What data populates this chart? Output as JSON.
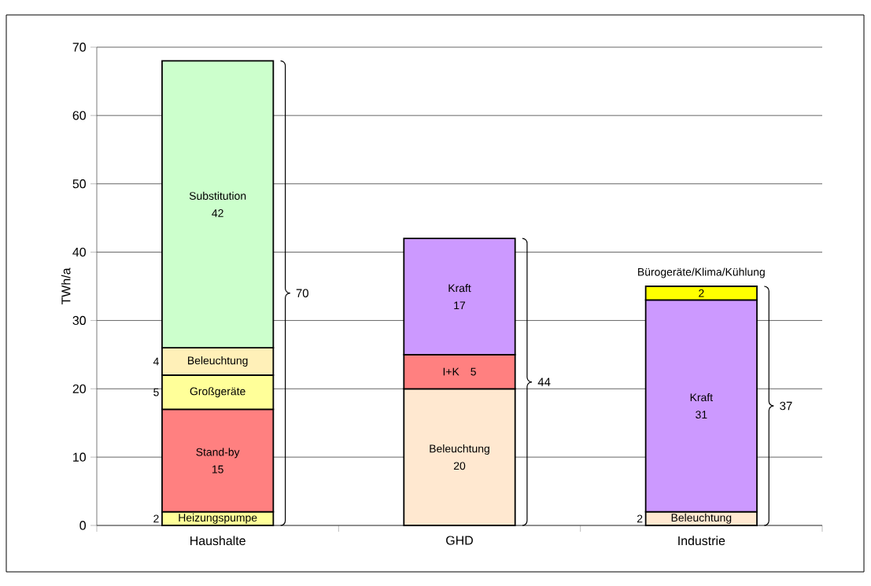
{
  "chart_data": {
    "type": "bar",
    "stacked": true,
    "ylabel": "TWh/a",
    "categories": [
      "Haushalte",
      "GHD",
      "Industrie"
    ],
    "series": [
      {
        "name": "Heizungspumpe",
        "color": "#ffff99",
        "values": [
          2,
          null,
          null
        ]
      },
      {
        "name": "Stand-by",
        "color": "#ff8080",
        "values": [
          15,
          null,
          null
        ]
      },
      {
        "name": "Großgeräte",
        "color": "#ffff99",
        "values": [
          5,
          null,
          null
        ]
      },
      {
        "name": "Beleuchtung",
        "color": "#fff0b8",
        "values": [
          4,
          null,
          null
        ]
      },
      {
        "name": "Substitution",
        "color": "#ccffcc",
        "values": [
          42,
          null,
          null
        ]
      },
      {
        "name": "Beleuchtung",
        "color": "#ffe8d0",
        "values": [
          null,
          20,
          2
        ]
      },
      {
        "name": "I+K",
        "color": "#ff8080",
        "values": [
          null,
          5,
          null
        ]
      },
      {
        "name": "Kraft",
        "color": "#cc99ff",
        "values": [
          null,
          17,
          31
        ]
      },
      {
        "name": "Bürogeräte/Klima/Kühlung",
        "color": "#ffff00",
        "values": [
          null,
          null,
          2
        ]
      }
    ],
    "totals": [
      "70",
      "44",
      "37"
    ],
    "data_labels": true,
    "ylim": [
      0,
      70
    ],
    "yticks": [
      0,
      10,
      20,
      30,
      40,
      50,
      60,
      70
    ],
    "grid": "y"
  }
}
